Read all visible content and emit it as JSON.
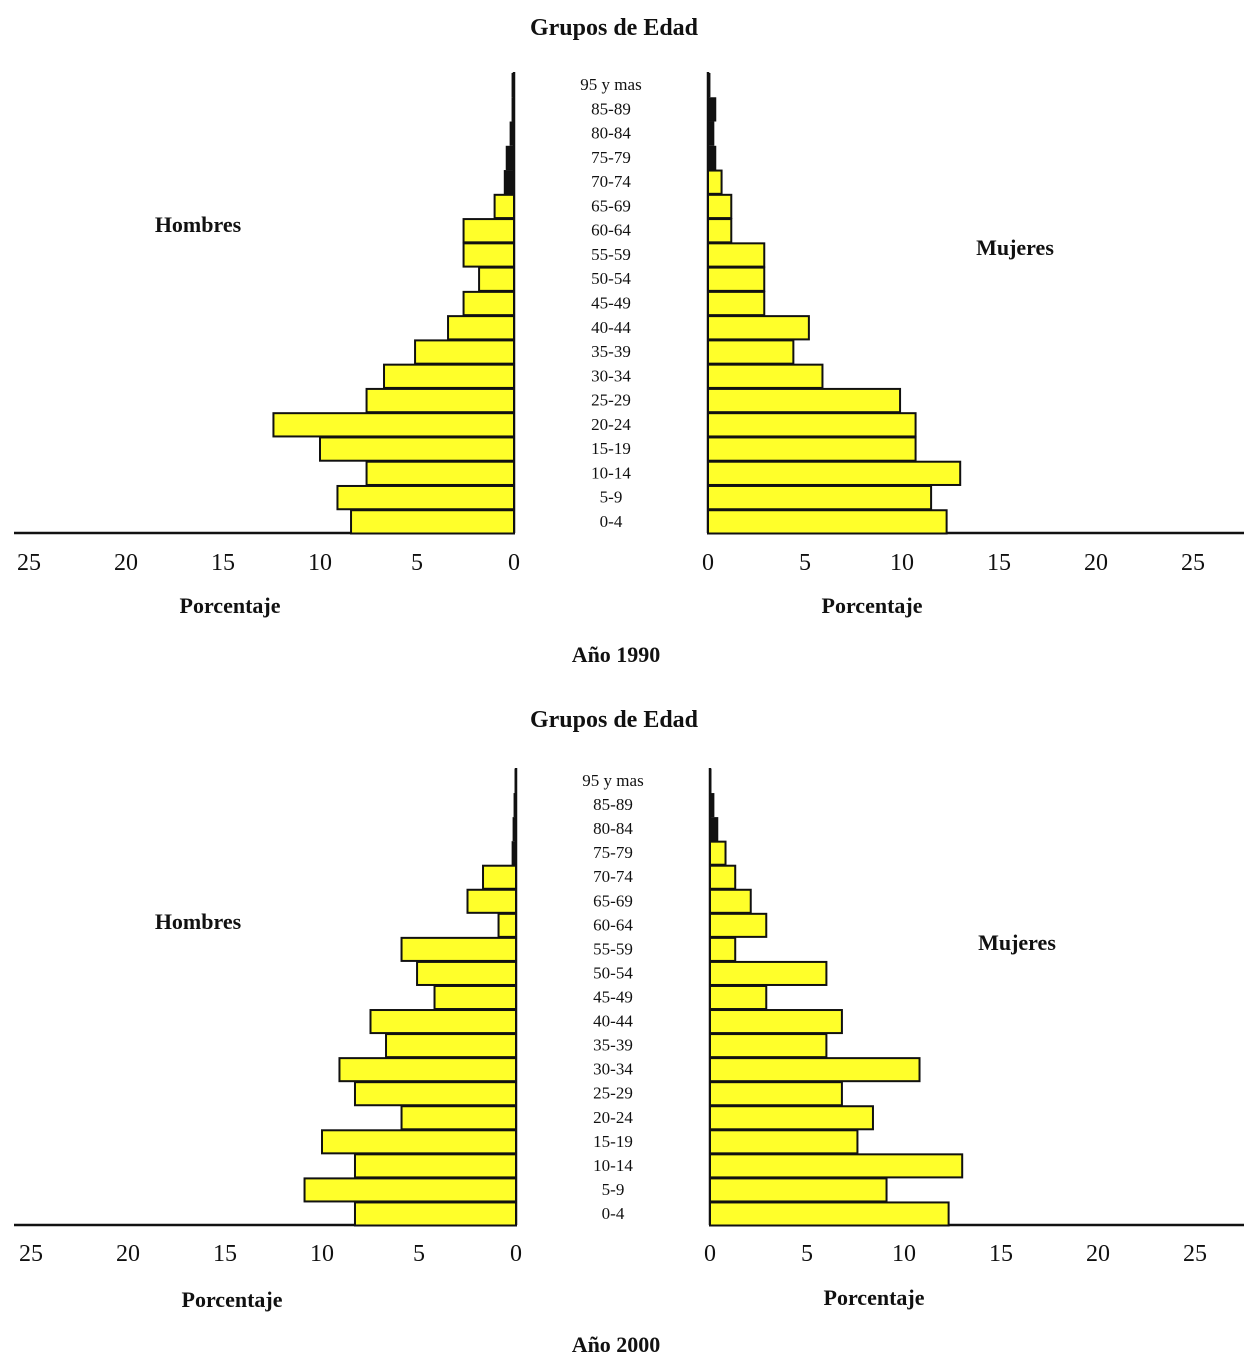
{
  "chart_data": [
    {
      "type": "bar",
      "title": "Grupos de Edad",
      "caption": "Año 1990",
      "left_label": "Hombres",
      "right_label": "Mujeres",
      "left_xlabel": "Porcentaje",
      "right_xlabel": "Porcentaje",
      "xlim": [
        0,
        25
      ],
      "ticks": [
        "25",
        "20",
        "15",
        "10",
        "5",
        "0"
      ],
      "right_ticks": [
        "0",
        "5",
        "10",
        "15",
        "20",
        "25"
      ],
      "categories": [
        "95 y mas",
        "85-89",
        "80-84",
        "75-79",
        "70-74",
        "65-69",
        "60-64",
        "55-59",
        "50-54",
        "45-49",
        "40-44",
        "35-39",
        "30-34",
        "25-29",
        "20-24",
        "15-19",
        "10-14",
        "5-9",
        "0-4"
      ],
      "series": [
        {
          "name": "Hombres",
          "values": [
            0.1,
            0.1,
            0.2,
            0.4,
            0.5,
            1.0,
            2.6,
            2.6,
            1.8,
            2.6,
            3.4,
            5.1,
            6.7,
            7.6,
            12.4,
            10.0,
            7.6,
            9.1,
            8.4
          ]
        },
        {
          "name": "Mujeres",
          "values": [
            0.1,
            0.4,
            0.3,
            0.4,
            0.7,
            1.2,
            1.2,
            2.9,
            2.9,
            2.9,
            5.2,
            4.4,
            5.9,
            9.9,
            10.7,
            10.7,
            13.0,
            11.5,
            12.3
          ]
        }
      ]
    },
    {
      "type": "bar",
      "title": "Grupos de Edad",
      "caption": "Año 2000",
      "left_label": "Hombres",
      "right_label": "Mujeres",
      "left_xlabel": "Porcentaje",
      "right_xlabel": "Porcentaje",
      "xlim": [
        0,
        25
      ],
      "ticks": [
        "25",
        "20",
        "15",
        "10",
        "5",
        "0"
      ],
      "right_ticks": [
        "0",
        "5",
        "10",
        "15",
        "20",
        "25"
      ],
      "categories": [
        "95 y mas",
        "85-89",
        "80-84",
        "75-79",
        "70-74",
        "65-69",
        "60-64",
        "55-59",
        "50-54",
        "45-49",
        "40-44",
        "35-39",
        "30-34",
        "25-29",
        "20-24",
        "15-19",
        "10-14",
        "5-9",
        "0-4"
      ],
      "series": [
        {
          "name": "Hombres",
          "values": [
            0.05,
            0.1,
            0.15,
            0.2,
            1.7,
            2.5,
            0.9,
            5.9,
            5.1,
            4.2,
            7.5,
            6.7,
            9.1,
            8.3,
            5.9,
            10.0,
            8.3,
            10.9,
            8.3
          ]
        },
        {
          "name": "Mujeres",
          "values": [
            0.05,
            0.2,
            0.4,
            0.8,
            1.3,
            2.1,
            2.9,
            1.3,
            6.0,
            2.9,
            6.8,
            6.0,
            10.8,
            6.8,
            8.4,
            7.6,
            13.0,
            9.1,
            12.3
          ]
        }
      ]
    }
  ],
  "colors": {
    "bar": "#ffff2a",
    "outline": "#111111",
    "axis": "#111111"
  }
}
